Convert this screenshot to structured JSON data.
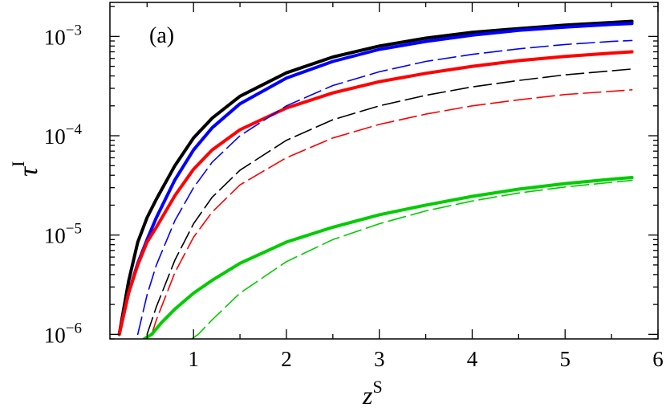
{
  "chart_data": {
    "type": "line",
    "panel_label": "(a)",
    "xlabel": {
      "base": "z",
      "sup": "S"
    },
    "ylabel": {
      "base": "τ",
      "sup": "I"
    },
    "xlim": [
      0.1,
      6.0
    ],
    "ylim": [
      9e-07,
      0.0022
    ],
    "yscale": "log",
    "grid": false,
    "x_ticks": [
      {
        "value": 1,
        "label": "1"
      },
      {
        "value": 2,
        "label": "2"
      },
      {
        "value": 3,
        "label": "3"
      },
      {
        "value": 4,
        "label": "4"
      },
      {
        "value": 5,
        "label": "5"
      },
      {
        "value": 6,
        "label": "6"
      }
    ],
    "y_ticks": [
      {
        "value": 1e-06,
        "base": "10",
        "exp": "−6"
      },
      {
        "value": 1e-05,
        "base": "10",
        "exp": "−5"
      },
      {
        "value": 0.0001,
        "base": "10",
        "exp": "−4"
      },
      {
        "value": 0.001,
        "base": "10",
        "exp": "−3"
      }
    ],
    "series": [
      {
        "color": "#000000",
        "style": "solid",
        "x": [
          0.2,
          0.3,
          0.4,
          0.5,
          0.6,
          0.8,
          1.0,
          1.2,
          1.5,
          2.0,
          2.5,
          3.0,
          3.5,
          4.0,
          4.5,
          5.0,
          5.5,
          5.72
        ],
        "y": [
          1e-06,
          3.4e-06,
          8.5e-06,
          1.5e-05,
          2.3e-05,
          5e-05,
          9.5e-05,
          0.00015,
          0.00025,
          0.00043,
          0.00062,
          0.0008,
          0.00096,
          0.0011,
          0.0012,
          0.0013,
          0.00138,
          0.00142
        ]
      },
      {
        "color": "#0000ff",
        "style": "solid",
        "x": [
          0.2,
          0.3,
          0.4,
          0.5,
          0.6,
          0.8,
          1.0,
          1.2,
          1.5,
          2.0,
          2.5,
          3.0,
          3.5,
          4.0,
          4.5,
          5.0,
          5.5,
          5.72
        ],
        "y": [
          1e-06,
          2.6e-06,
          5.2e-06,
          9e-06,
          1.5e-05,
          3.6e-05,
          7.2e-05,
          0.00012,
          0.00021,
          0.00038,
          0.00056,
          0.00074,
          0.00089,
          0.00103,
          0.00115,
          0.00124,
          0.00132,
          0.00135
        ]
      },
      {
        "color": "#ff0000",
        "style": "solid",
        "x": [
          0.2,
          0.3,
          0.4,
          0.5,
          0.6,
          0.8,
          1.0,
          1.2,
          1.5,
          2.0,
          2.5,
          3.0,
          3.5,
          4.0,
          4.5,
          5.0,
          5.5,
          5.72
        ],
        "y": [
          1e-06,
          2.6e-06,
          5e-06,
          8.5e-06,
          1.2e-05,
          2.5e-05,
          4.6e-05,
          7.2e-05,
          0.000115,
          0.00019,
          0.00027,
          0.00035,
          0.000425,
          0.0005,
          0.00057,
          0.00063,
          0.00068,
          0.0007
        ]
      },
      {
        "color": "#0000ff",
        "style": "dashed",
        "x": [
          0.4,
          0.5,
          0.6,
          0.8,
          1.0,
          1.2,
          1.5,
          2.0,
          2.5,
          3.0,
          3.5,
          4.0,
          4.5,
          5.0,
          5.5,
          5.72
        ],
        "y": [
          1e-06,
          2.5e-06,
          5e-06,
          1.4e-05,
          3e-05,
          5.4e-05,
          0.0001,
          0.0002,
          0.00032,
          0.00044,
          0.00056,
          0.00066,
          0.00075,
          0.00083,
          0.00089,
          0.00091
        ]
      },
      {
        "color": "#000000",
        "style": "dashed",
        "x": [
          0.5,
          0.6,
          0.8,
          1.0,
          1.2,
          1.5,
          2.0,
          2.5,
          3.0,
          3.5,
          4.0,
          4.5,
          5.0,
          5.5,
          5.72
        ],
        "y": [
          1e-06,
          1.9e-06,
          5.6e-06,
          1.3e-05,
          2.4e-05,
          4.5e-05,
          9e-05,
          0.000145,
          0.0002,
          0.000255,
          0.00031,
          0.00036,
          0.00041,
          0.00045,
          0.00047
        ]
      },
      {
        "color": "#ff0000",
        "style": "dashed",
        "x": [
          0.55,
          0.6,
          0.8,
          1.0,
          1.2,
          1.5,
          2.0,
          2.5,
          3.0,
          3.5,
          4.0,
          4.5,
          5.0,
          5.5,
          5.72
        ],
        "y": [
          1e-06,
          1.4e-06,
          4.2e-06,
          9.5e-06,
          1.7e-05,
          3.2e-05,
          6e-05,
          9.5e-05,
          0.00013,
          0.000165,
          0.0002,
          0.00023,
          0.00026,
          0.00028,
          0.00029
        ]
      },
      {
        "color": "#00cc00",
        "style": "solid",
        "x": [
          0.47,
          0.55,
          0.65,
          0.8,
          1.0,
          1.2,
          1.5,
          2.0,
          2.5,
          3.0,
          3.5,
          4.0,
          4.5,
          5.0,
          5.5,
          5.72
        ],
        "y": [
          9e-07,
          1e-06,
          1.3e-06,
          1.8e-06,
          2.6e-06,
          3.5e-06,
          5.2e-06,
          8.5e-06,
          1.2e-05,
          1.6e-05,
          2e-05,
          2.45e-05,
          2.9e-05,
          3.3e-05,
          3.65e-05,
          3.8e-05
        ]
      },
      {
        "color": "#00cc00",
        "style": "dashed",
        "x": [
          0.98,
          1.05,
          1.2,
          1.5,
          2.0,
          2.5,
          3.0,
          3.5,
          4.0,
          4.5,
          5.0,
          5.5,
          5.72
        ],
        "y": [
          9e-07,
          1e-06,
          1.4e-06,
          2.6e-06,
          5.4e-06,
          9e-06,
          1.3e-05,
          1.75e-05,
          2.2e-05,
          2.65e-05,
          3.05e-05,
          3.4e-05,
          3.55e-05
        ]
      }
    ]
  }
}
